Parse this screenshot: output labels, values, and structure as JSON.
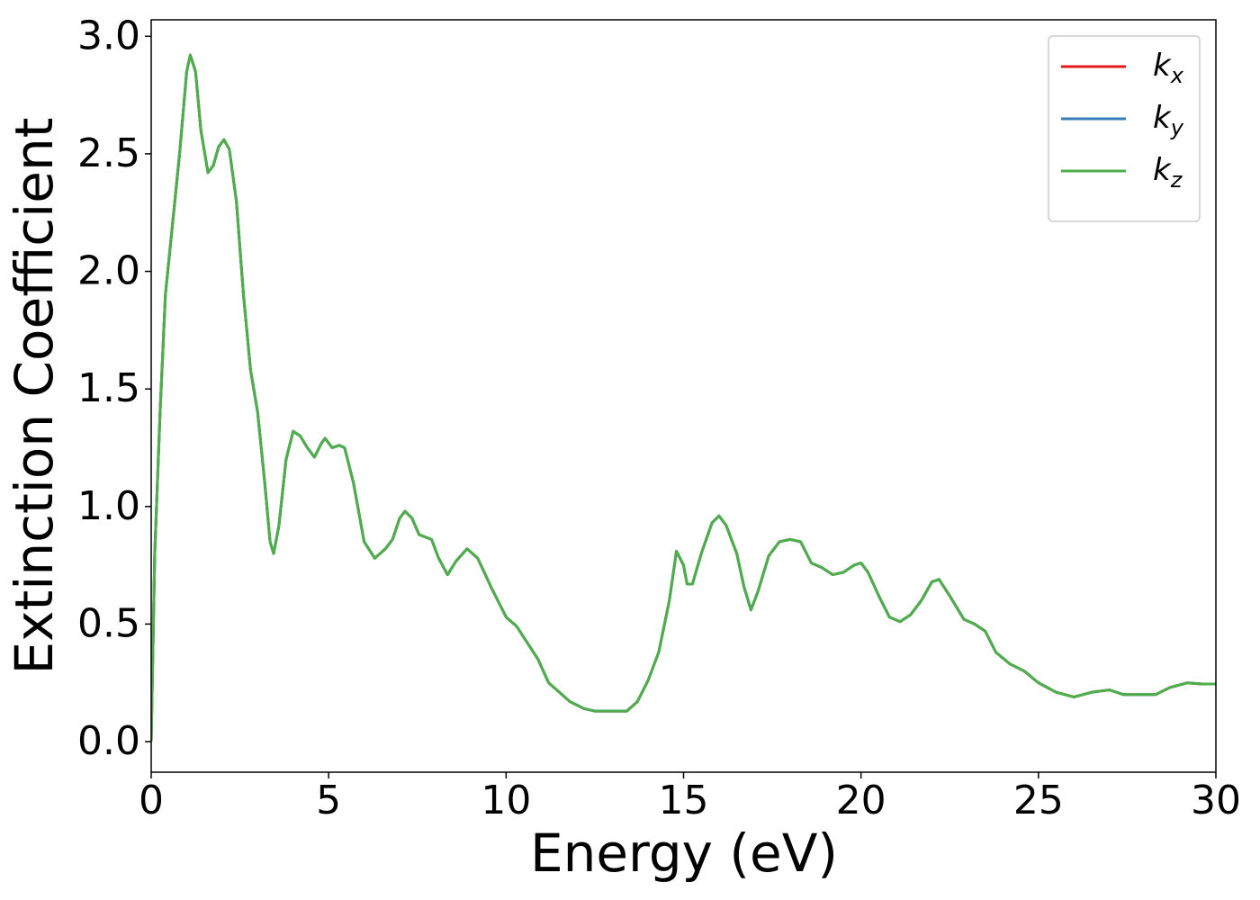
{
  "chart_data": {
    "type": "line",
    "xlabel": "Energy (eV)",
    "ylabel": "Extinction Coefficient",
    "xlim": [
      0,
      30
    ],
    "ylim": [
      -0.13,
      3.07
    ],
    "xticks": [
      0,
      5,
      10,
      15,
      20,
      25,
      30
    ],
    "yticks": [
      {
        "value": 0,
        "label": "0.0"
      },
      {
        "value": 0.5,
        "label": "0.5"
      },
      {
        "value": 1,
        "label": "1.0"
      },
      {
        "value": 1.5,
        "label": "1.5"
      },
      {
        "value": 2,
        "label": "2.0"
      },
      {
        "value": 2.5,
        "label": "2.5"
      },
      {
        "value": 3,
        "label": "3.0"
      }
    ],
    "grid": false,
    "legend": "upper right",
    "x": [
      0,
      0.1,
      0.25,
      0.4,
      0.6,
      0.8,
      1.0,
      1.1,
      1.25,
      1.4,
      1.6,
      1.75,
      1.9,
      2.05,
      2.2,
      2.4,
      2.6,
      2.8,
      3.0,
      3.2,
      3.35,
      3.45,
      3.6,
      3.8,
      4.0,
      4.2,
      4.4,
      4.6,
      4.8,
      4.9,
      5.1,
      5.3,
      5.45,
      5.7,
      6.0,
      6.3,
      6.6,
      6.8,
      7.0,
      7.15,
      7.35,
      7.55,
      7.9,
      8.1,
      8.35,
      8.6,
      8.9,
      9.2,
      9.6,
      10.0,
      10.3,
      10.6,
      10.9,
      11.2,
      11.5,
      11.8,
      12.2,
      12.5,
      12.9,
      13.4,
      13.7,
      14.0,
      14.3,
      14.6,
      14.8,
      15.0,
      15.1,
      15.25,
      15.5,
      15.8,
      16.0,
      16.2,
      16.5,
      16.7,
      16.9,
      17.1,
      17.4,
      17.7,
      18.0,
      18.3,
      18.6,
      18.9,
      19.2,
      19.5,
      19.8,
      20.0,
      20.2,
      20.5,
      20.8,
      21.1,
      21.4,
      21.7,
      22.0,
      22.2,
      22.5,
      22.9,
      23.2,
      23.5,
      23.8,
      24.2,
      24.6,
      25.0,
      25.5,
      26.0,
      26.5,
      27.0,
      27.4,
      27.8,
      28.3,
      28.7,
      29.2,
      29.6,
      30.0
    ],
    "series": [
      {
        "name": "kx",
        "color": "#e41a1c",
        "values": [
          0,
          0.8,
          1.4,
          1.9,
          2.2,
          2.5,
          2.85,
          2.92,
          2.85,
          2.6,
          2.42,
          2.45,
          2.53,
          2.56,
          2.52,
          2.3,
          1.9,
          1.58,
          1.4,
          1.1,
          0.85,
          0.8,
          0.92,
          1.2,
          1.32,
          1.3,
          1.25,
          1.21,
          1.27,
          1.29,
          1.25,
          1.26,
          1.25,
          1.1,
          0.85,
          0.78,
          0.82,
          0.86,
          0.95,
          0.98,
          0.95,
          0.88,
          0.86,
          0.78,
          0.71,
          0.77,
          0.82,
          0.78,
          0.65,
          0.53,
          0.49,
          0.42,
          0.35,
          0.25,
          0.21,
          0.17,
          0.14,
          0.13,
          0.13,
          0.13,
          0.17,
          0.26,
          0.38,
          0.6,
          0.81,
          0.75,
          0.67,
          0.67,
          0.8,
          0.93,
          0.96,
          0.92,
          0.8,
          0.66,
          0.56,
          0.64,
          0.79,
          0.85,
          0.86,
          0.85,
          0.76,
          0.74,
          0.71,
          0.72,
          0.75,
          0.76,
          0.72,
          0.62,
          0.53,
          0.51,
          0.54,
          0.6,
          0.68,
          0.69,
          0.62,
          0.52,
          0.5,
          0.47,
          0.38,
          0.33,
          0.3,
          0.25,
          0.21,
          0.19,
          0.21,
          0.22,
          0.2,
          0.2,
          0.2,
          0.23,
          0.25,
          0.245,
          0.245
        ]
      },
      {
        "name": "ky",
        "color": "#377eb8",
        "values": [
          0,
          0.8,
          1.4,
          1.9,
          2.2,
          2.5,
          2.85,
          2.92,
          2.85,
          2.6,
          2.42,
          2.45,
          2.53,
          2.56,
          2.52,
          2.3,
          1.9,
          1.58,
          1.4,
          1.1,
          0.85,
          0.8,
          0.92,
          1.2,
          1.32,
          1.3,
          1.25,
          1.21,
          1.27,
          1.29,
          1.25,
          1.26,
          1.25,
          1.1,
          0.85,
          0.78,
          0.82,
          0.86,
          0.95,
          0.98,
          0.95,
          0.88,
          0.86,
          0.78,
          0.71,
          0.77,
          0.82,
          0.78,
          0.65,
          0.53,
          0.49,
          0.42,
          0.35,
          0.25,
          0.21,
          0.17,
          0.14,
          0.13,
          0.13,
          0.13,
          0.17,
          0.26,
          0.38,
          0.6,
          0.81,
          0.75,
          0.67,
          0.67,
          0.8,
          0.93,
          0.96,
          0.92,
          0.8,
          0.66,
          0.56,
          0.64,
          0.79,
          0.85,
          0.86,
          0.85,
          0.76,
          0.74,
          0.71,
          0.72,
          0.75,
          0.76,
          0.72,
          0.62,
          0.53,
          0.51,
          0.54,
          0.6,
          0.68,
          0.69,
          0.62,
          0.52,
          0.5,
          0.47,
          0.38,
          0.33,
          0.3,
          0.25,
          0.21,
          0.19,
          0.21,
          0.22,
          0.2,
          0.2,
          0.2,
          0.23,
          0.25,
          0.245,
          0.245
        ]
      },
      {
        "name": "kz",
        "color": "#4daf4a",
        "values": [
          0,
          0.8,
          1.4,
          1.9,
          2.2,
          2.5,
          2.85,
          2.92,
          2.85,
          2.6,
          2.42,
          2.45,
          2.53,
          2.56,
          2.52,
          2.3,
          1.9,
          1.58,
          1.4,
          1.1,
          0.85,
          0.8,
          0.92,
          1.2,
          1.32,
          1.3,
          1.25,
          1.21,
          1.27,
          1.29,
          1.25,
          1.26,
          1.25,
          1.1,
          0.85,
          0.78,
          0.82,
          0.86,
          0.95,
          0.98,
          0.95,
          0.88,
          0.86,
          0.78,
          0.71,
          0.77,
          0.82,
          0.78,
          0.65,
          0.53,
          0.49,
          0.42,
          0.35,
          0.25,
          0.21,
          0.17,
          0.14,
          0.13,
          0.13,
          0.13,
          0.17,
          0.26,
          0.38,
          0.6,
          0.81,
          0.75,
          0.67,
          0.67,
          0.8,
          0.93,
          0.96,
          0.92,
          0.8,
          0.66,
          0.56,
          0.64,
          0.79,
          0.85,
          0.86,
          0.85,
          0.76,
          0.74,
          0.71,
          0.72,
          0.75,
          0.76,
          0.72,
          0.62,
          0.53,
          0.51,
          0.54,
          0.6,
          0.68,
          0.69,
          0.62,
          0.52,
          0.5,
          0.47,
          0.38,
          0.33,
          0.3,
          0.25,
          0.21,
          0.19,
          0.21,
          0.22,
          0.2,
          0.2,
          0.2,
          0.23,
          0.25,
          0.245,
          0.245
        ]
      }
    ]
  }
}
